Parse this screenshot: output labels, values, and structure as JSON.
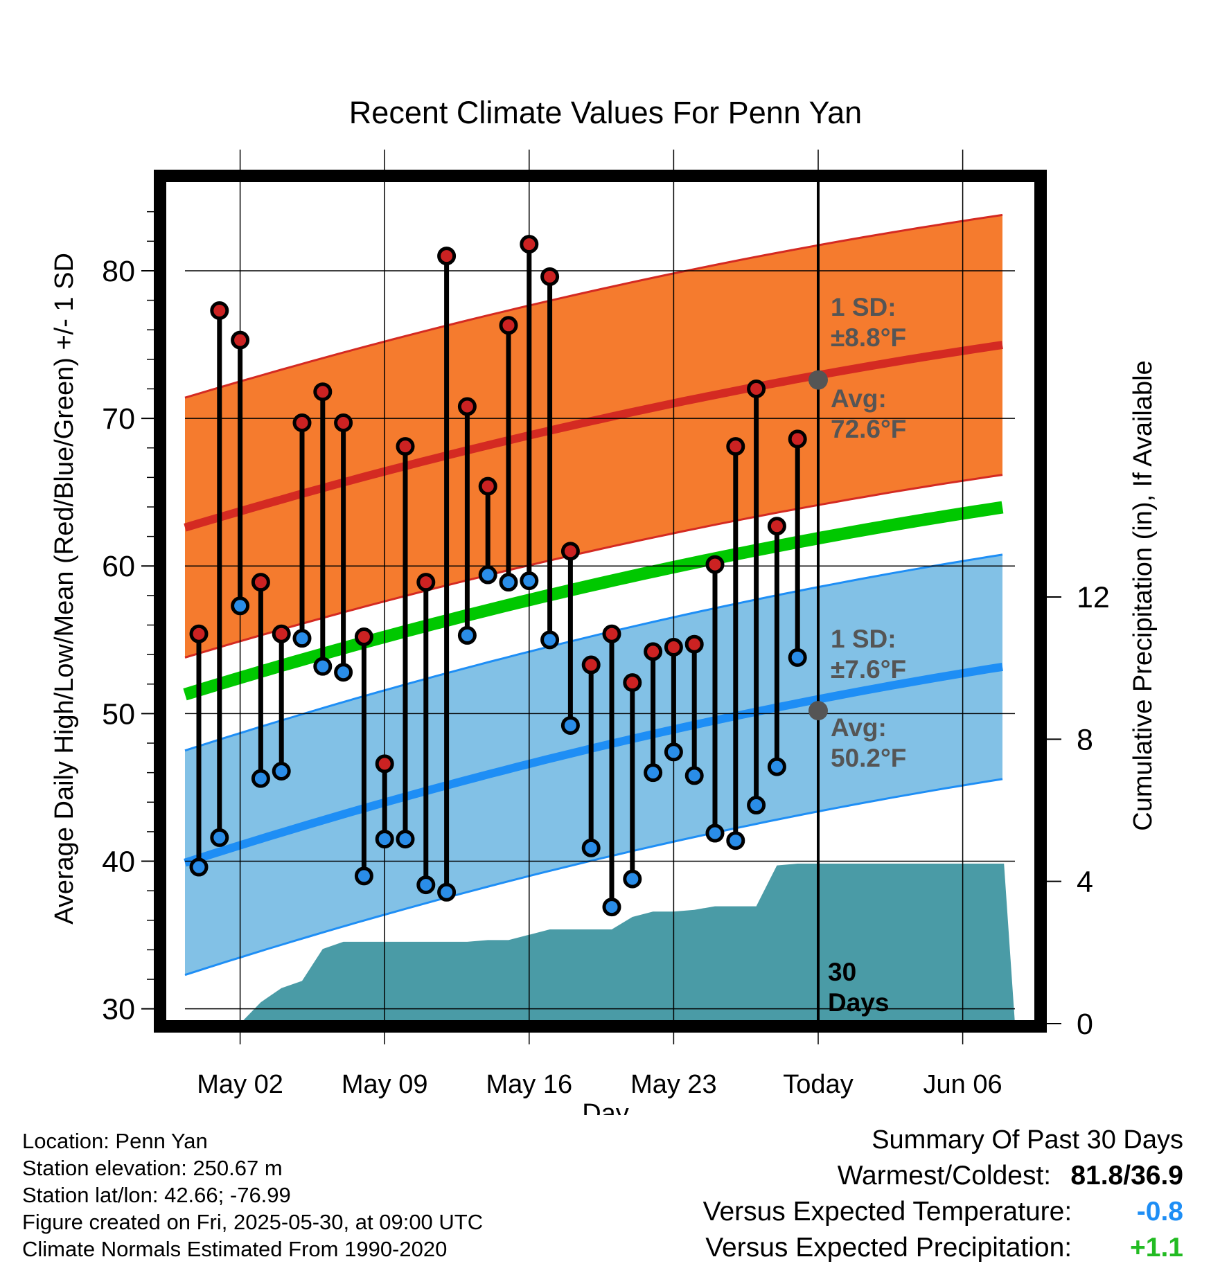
{
  "chart_data": {
    "type": "line",
    "title": "Recent Climate Values For Penn Yan",
    "xlabel": "Day",
    "ylabel": "Average Daily High/Low/Mean (Red/Blue/Green) +/- 1 SD",
    "y2label": "Cumulative Precipitation (in), If Available",
    "ylim": [
      29,
      86.8
    ],
    "y2lim": [
      0,
      24
    ],
    "y_ticks": [
      "30",
      "40",
      "50",
      "60",
      "70",
      "80"
    ],
    "y2_ticks": [
      "0",
      "4",
      "8",
      "12"
    ],
    "x_tick_labels": [
      "May 02",
      "May 09",
      "May 16",
      "May 23",
      "Today",
      "Jun 06"
    ],
    "grid": true,
    "days": [
      "Apr 30",
      "May 01",
      "May 02",
      "May 03",
      "May 04",
      "May 05",
      "May 06",
      "May 07",
      "May 08",
      "May 09",
      "May 10",
      "May 11",
      "May 12",
      "May 13",
      "May 14",
      "May 15",
      "May 16",
      "May 17",
      "May 18",
      "May 19",
      "May 20",
      "May 21",
      "May 22",
      "May 23",
      "May 24",
      "May 25",
      "May 26",
      "May 27",
      "May 28",
      "May 29"
    ],
    "highs": [
      55.4,
      77.3,
      75.3,
      58.9,
      55.4,
      69.7,
      71.8,
      69.7,
      55.2,
      46.6,
      68.1,
      58.9,
      81.0,
      70.8,
      65.4,
      76.3,
      81.8,
      79.6,
      61.0,
      53.3,
      55.4,
      52.1,
      54.2,
      54.5,
      54.7,
      60.1,
      68.1,
      72.0,
      62.7,
      68.6
    ],
    "lows": [
      39.6,
      41.6,
      57.3,
      45.6,
      46.1,
      55.1,
      53.2,
      52.8,
      39.0,
      41.5,
      41.5,
      38.4,
      37.9,
      55.3,
      59.4,
      58.9,
      59.0,
      55.0,
      49.2,
      40.9,
      36.9,
      38.8,
      46.0,
      47.4,
      45.8,
      41.9,
      41.4,
      43.8,
      46.4,
      53.8
    ],
    "normal_high_start": 62.6,
    "normal_high_end": 75.1,
    "normal_low_start": 39.9,
    "normal_low_end": 53.3,
    "normal_mean_start": 51.3,
    "normal_mean_end": 64.1,
    "high_sd": 8.8,
    "low_sd": 7.6,
    "precip_days": [
      "Apr 30",
      "May 01",
      "May 02",
      "May 03",
      "May 04",
      "May 05",
      "May 06",
      "May 07",
      "May 08",
      "May 09",
      "May 10",
      "May 11",
      "May 12",
      "May 13",
      "May 14",
      "May 15",
      "May 16",
      "May 17",
      "May 18",
      "May 19",
      "May 20",
      "May 21",
      "May 22",
      "May 23",
      "May 24",
      "May 25",
      "May 26",
      "May 27",
      "May 28",
      "May 29",
      "May 30",
      "Jun 08"
    ],
    "cumulative_precip": [
      0,
      0,
      0,
      0.6,
      1.0,
      1.2,
      2.1,
      2.3,
      2.3,
      2.3,
      2.3,
      2.3,
      2.3,
      2.3,
      2.35,
      2.35,
      2.5,
      2.65,
      2.65,
      2.65,
      2.65,
      3.0,
      3.15,
      3.15,
      3.2,
      3.3,
      3.3,
      3.3,
      4.45,
      4.5,
      4.5,
      4.5
    ],
    "annotations": {
      "high_sd_label": "1 SD:",
      "high_sd_value": "±8.8°F",
      "high_avg_label": "Avg:",
      "high_avg_value": "72.6°F",
      "low_sd_label": "1 SD:",
      "low_sd_value": "±7.6°F",
      "low_avg_label": "Avg:",
      "low_avg_value": "50.2°F",
      "today_high_avg": 72.6,
      "today_low_avg": 50.2,
      "period_line1": "30",
      "period_line2": "Days"
    },
    "colors": {
      "high_band": "#f57b2e",
      "high_line": "#d42a22",
      "low_band": "#82c1e6",
      "low_line": "#1e8ef5",
      "mean_line": "#00c800",
      "precip_fill": "#4a9ba6",
      "high_dot": "#cc2222",
      "low_dot": "#2a8de8",
      "annotation": "#555555"
    }
  },
  "info": {
    "location": "Location: Penn Yan",
    "elevation": "Station elevation: 250.67 m",
    "latlon": "Station lat/lon: 42.66; -76.99",
    "created": "Figure created on Fri, 2025-05-30, at 09:00 UTC",
    "normals": "Climate Normals Estimated From 1990-2020"
  },
  "summary": {
    "heading": "Summary Of Past 30 Days",
    "warmest_label": "Warmest/Coldest:",
    "warmest_value": "81.8/36.9",
    "temp_label": "Versus Expected Temperature:",
    "temp_value": "-0.8",
    "temp_color": "#1e8ef5",
    "precip_label": "Versus Expected Precipitation:",
    "precip_value": "+1.1",
    "precip_color": "#22bb22"
  }
}
